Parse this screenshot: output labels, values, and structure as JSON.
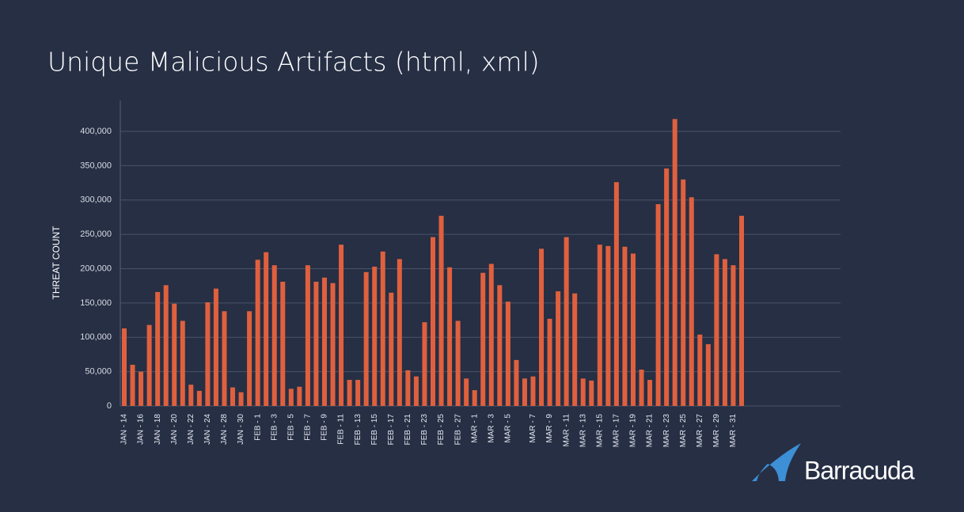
{
  "chart_data": {
    "type": "bar",
    "title": "Unique Malicious Artifacts (html, xml)",
    "y_label": "THREAT COUNT",
    "brand": "Barracuda",
    "color": "#e0603e",
    "grid": true,
    "ylim": [
      0,
      445000
    ],
    "yticks": [
      {
        "value": 0,
        "label": "0"
      },
      {
        "value": 50000,
        "label": "50,000"
      },
      {
        "value": 100000,
        "label": "100,000"
      },
      {
        "value": 150000,
        "label": "150,000"
      },
      {
        "value": 200000,
        "label": "200,000"
      },
      {
        "value": 250000,
        "label": "250,000"
      },
      {
        "value": 300000,
        "label": "300,000"
      },
      {
        "value": 350000,
        "label": "350,000"
      },
      {
        "value": 400000,
        "label": "400,000"
      }
    ],
    "categories": [
      "JAN - 14",
      null,
      "JAN - 16",
      null,
      "JAN - 18",
      null,
      "JAN - 20",
      null,
      "JAN - 22",
      null,
      "JAN - 24",
      null,
      "JAN - 28",
      null,
      "JAN - 30",
      null,
      "FEB - 1",
      null,
      "FEB - 3",
      null,
      "FEB - 5",
      null,
      "FEB - 7",
      null,
      "FEB - 9",
      null,
      "FEB - 11",
      null,
      "FEB - 13",
      null,
      "FEB - 15",
      null,
      "FEB - 17",
      null,
      "FEB - 21",
      null,
      "FEB - 23",
      null,
      "FEB - 25",
      null,
      "FEB - 27",
      null,
      "MAR - 1",
      null,
      "MAR - 3",
      null,
      "MAR - 5",
      null,
      null,
      "MAR - 7",
      null,
      "MAR - 9",
      null,
      "MAR - 11",
      null,
      "MAR - 13",
      null,
      "MAR - 15",
      null,
      "MAR - 17",
      null,
      "MAR - 19",
      null,
      "MAR - 21",
      null,
      "MAR - 23",
      null,
      "MAR - 25",
      null,
      "MAR - 27",
      null,
      "MAR - 29",
      null,
      "MAR - 31",
      null
    ],
    "values": [
      113000,
      60000,
      50000,
      118000,
      166000,
      176000,
      149000,
      124000,
      31000,
      22000,
      151000,
      171000,
      138000,
      27000,
      20000,
      138000,
      213000,
      224000,
      205000,
      181000,
      25000,
      28000,
      205000,
      181000,
      187000,
      179000,
      235000,
      38000,
      38000,
      195000,
      203000,
      225000,
      165000,
      214000,
      52000,
      43000,
      122000,
      246000,
      277000,
      202000,
      124000,
      40000,
      23000,
      194000,
      207000,
      176000,
      152000,
      67000,
      40000,
      43000,
      229000,
      127000,
      167000,
      246000,
      164000,
      40000,
      37000,
      235000,
      233000,
      326000,
      232000,
      222000,
      53000,
      38000,
      294000,
      346000,
      418000,
      330000,
      304000,
      104000,
      90000,
      221000,
      214000,
      205000,
      277000
    ]
  }
}
